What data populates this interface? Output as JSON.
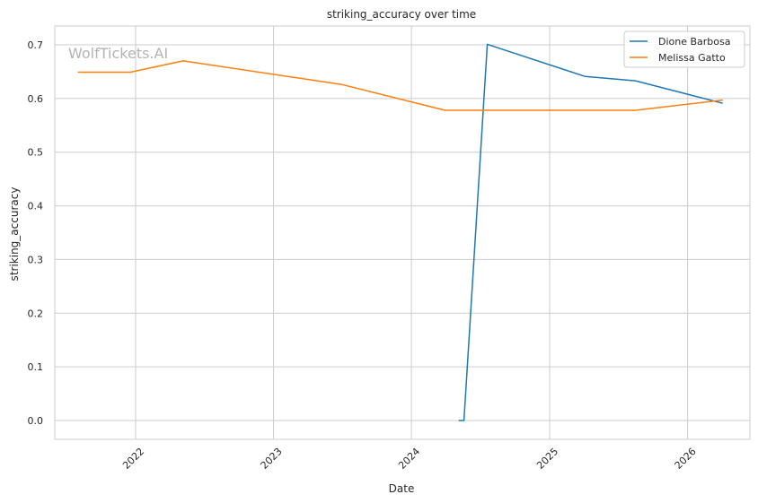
{
  "watermark": "WolfTickets.AI",
  "chart_data": {
    "type": "line",
    "title": "striking_accuracy over time",
    "xlabel": "Date",
    "ylabel": "striking_accuracy",
    "xlim": [
      "2021-06-01",
      "2026-06-15"
    ],
    "ylim": [
      -0.035,
      0.735
    ],
    "x_ticks": [
      "2022-01-01",
      "2023-01-01",
      "2024-01-01",
      "2025-01-01",
      "2026-01-01"
    ],
    "x_tick_labels": [
      "2022",
      "2023",
      "2024",
      "2025",
      "2026"
    ],
    "y_ticks": [
      0.0,
      0.1,
      0.2,
      0.3,
      0.4,
      0.5,
      0.6,
      0.7
    ],
    "y_tick_labels": [
      "0.0",
      "0.1",
      "0.2",
      "0.3",
      "0.4",
      "0.5",
      "0.6",
      "0.7"
    ],
    "grid": true,
    "legend_position": "top-right",
    "series": [
      {
        "name": "Dione Barbosa",
        "color": "#1f77b4",
        "points": [
          {
            "x": "2024-05-05",
            "y": 0.0
          },
          {
            "x": "2024-05-19",
            "y": 0.0
          },
          {
            "x": "2024-07-20",
            "y": 0.701
          },
          {
            "x": "2025-04-05",
            "y": 0.641
          },
          {
            "x": "2025-08-16",
            "y": 0.633
          },
          {
            "x": "2026-04-04",
            "y": 0.591
          }
        ]
      },
      {
        "name": "Melissa Gatto",
        "color": "#ff7f0e",
        "points": [
          {
            "x": "2021-08-01",
            "y": 0.649
          },
          {
            "x": "2021-12-18",
            "y": 0.649
          },
          {
            "x": "2022-05-07",
            "y": 0.67
          },
          {
            "x": "2023-07-01",
            "y": 0.626
          },
          {
            "x": "2024-03-30",
            "y": 0.578
          },
          {
            "x": "2025-08-16",
            "y": 0.578
          },
          {
            "x": "2026-04-04",
            "y": 0.597
          }
        ]
      }
    ]
  }
}
